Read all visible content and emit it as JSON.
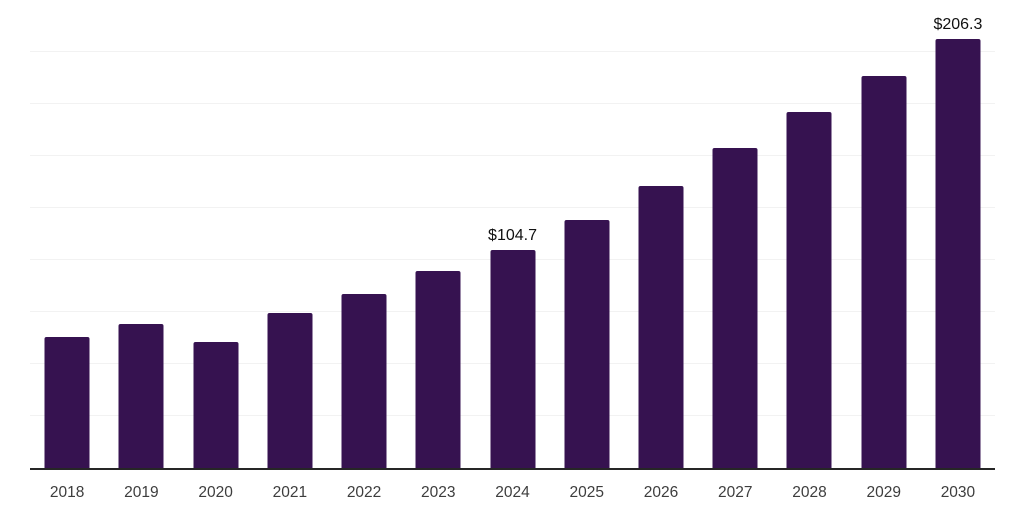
{
  "chart_data": {
    "type": "bar",
    "title": "",
    "xlabel": "",
    "ylabel": "",
    "categories": [
      "2018",
      "2019",
      "2020",
      "2021",
      "2022",
      "2023",
      "2024",
      "2025",
      "2026",
      "2027",
      "2028",
      "2029",
      "2030"
    ],
    "values": [
      62.8,
      69.1,
      60.7,
      74.4,
      83.7,
      94.5,
      104.7,
      119.2,
      135.7,
      153.9,
      171.3,
      188.6,
      206.3
    ],
    "bar_labels": {
      "2024": "$104.7",
      "2030": "$206.3"
    },
    "ylim": [
      0,
      225
    ],
    "gridline_step": 25,
    "grid": "horizontal",
    "legend": "none",
    "colors": {
      "bar": "#361250",
      "axis_line": "#262626",
      "gridline": "#f2f2f2",
      "tick_label": "#3d3d3d",
      "data_label": "#111111",
      "background": "#ffffff"
    }
  }
}
